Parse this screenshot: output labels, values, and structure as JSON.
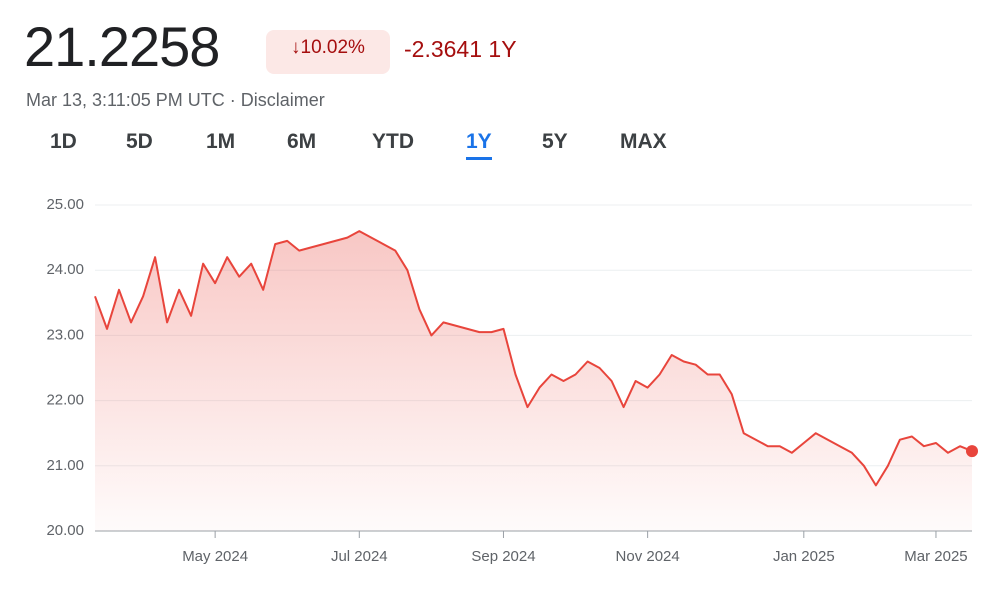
{
  "header": {
    "price": "21.2258",
    "change_percent": "↓10.02%",
    "change_value": "-2.3641 1Y",
    "timestamp": "Mar 13, 3:11:05 PM UTC · Disclaimer",
    "tabs": [
      "1D",
      "5D",
      "1M",
      "6M",
      "YTD",
      "1Y",
      "5Y",
      "MAX"
    ],
    "selected_tab": "1Y"
  },
  "chart_data": {
    "type": "line",
    "color": "#e8453c",
    "categories": [
      null,
      null,
      null,
      null,
      null,
      null,
      null,
      null,
      null,
      null,
      "May 2024",
      null,
      null,
      null,
      null,
      null,
      null,
      null,
      null,
      null,
      null,
      null,
      "Jul 2024",
      null,
      null,
      null,
      null,
      null,
      null,
      null,
      null,
      null,
      null,
      null,
      "Sep 2024",
      null,
      null,
      null,
      null,
      null,
      null,
      null,
      null,
      null,
      null,
      null,
      "Nov 2024",
      null,
      null,
      null,
      null,
      null,
      null,
      null,
      null,
      null,
      null,
      null,
      null,
      "Jan 2025",
      null,
      null,
      null,
      null,
      null,
      null,
      null,
      null,
      null,
      null,
      "Mar 2025",
      null,
      null,
      null
    ],
    "values": [
      23.6,
      23.1,
      23.7,
      23.2,
      23.6,
      24.2,
      23.2,
      23.7,
      23.3,
      24.1,
      23.8,
      24.2,
      23.9,
      24.1,
      23.7,
      24.4,
      24.45,
      24.3,
      24.35,
      24.4,
      24.45,
      24.5,
      24.6,
      24.5,
      24.4,
      24.3,
      24.0,
      23.4,
      23.0,
      23.2,
      23.15,
      23.1,
      23.05,
      23.05,
      23.1,
      22.4,
      21.9,
      22.2,
      22.4,
      22.3,
      22.4,
      22.6,
      22.5,
      22.3,
      21.9,
      22.3,
      22.2,
      22.4,
      22.7,
      22.6,
      22.55,
      22.4,
      22.4,
      22.1,
      21.5,
      21.4,
      21.3,
      21.3,
      21.2,
      21.35,
      21.5,
      21.4,
      21.3,
      21.2,
      21.0,
      20.7,
      21.0,
      21.4,
      21.45,
      21.3,
      21.35,
      21.2,
      21.3,
      21.2258
    ],
    "ylim": [
      20,
      25
    ],
    "yticks": [
      {
        "value": 20,
        "label": "20.00"
      },
      {
        "value": 21,
        "label": "21.00"
      },
      {
        "value": 22,
        "label": "22.00"
      },
      {
        "value": 23,
        "label": "23.00"
      },
      {
        "value": 24,
        "label": "24.00"
      },
      {
        "value": 25,
        "label": "25.00"
      }
    ],
    "grid": true
  }
}
